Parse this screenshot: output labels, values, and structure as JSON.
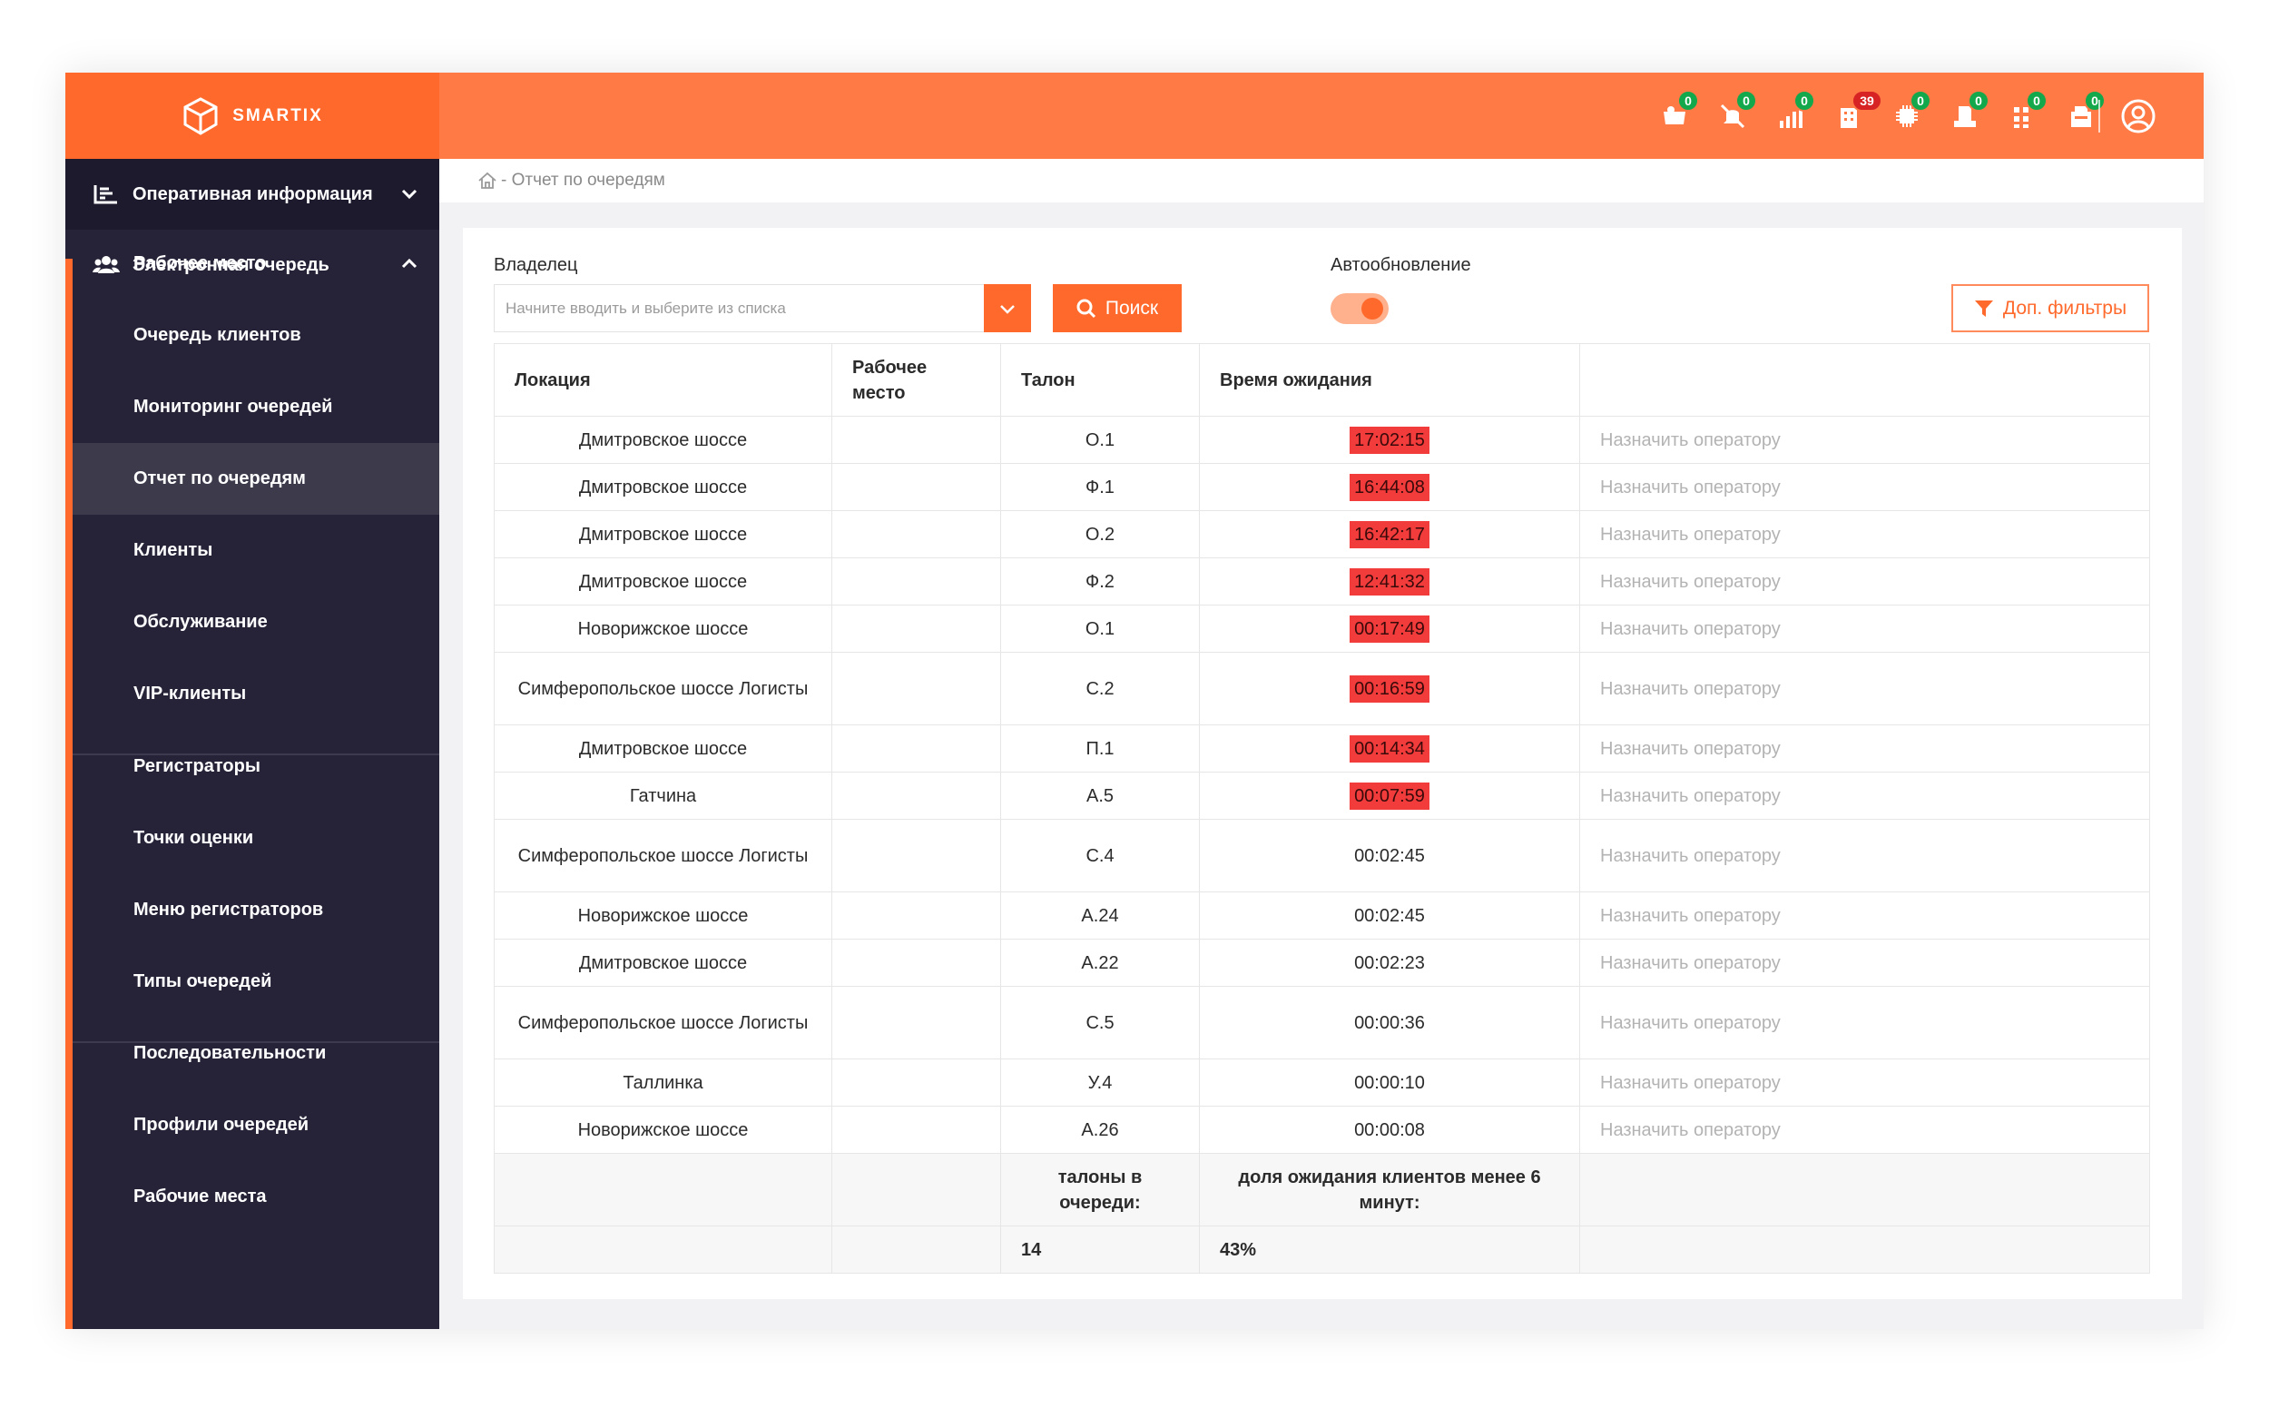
{
  "brand": {
    "name": "SMARTIX"
  },
  "header": {
    "badges": [
      {
        "icon": "cart-icon",
        "count": "0",
        "color": "#13a84b"
      },
      {
        "icon": "mute-bell-icon",
        "count": "0",
        "color": "#13a84b"
      },
      {
        "icon": "signal-icon",
        "count": "0",
        "color": "#13a84b"
      },
      {
        "icon": "building-icon",
        "count": "39",
        "color": "#d72323"
      },
      {
        "icon": "chip-icon",
        "count": "0",
        "color": "#13a84b"
      },
      {
        "icon": "printer-icon",
        "count": "0",
        "color": "#13a84b"
      },
      {
        "icon": "grid-icon",
        "count": "0",
        "color": "#13a84b"
      },
      {
        "icon": "terminal-icon",
        "count": "0",
        "color": "#13a84b"
      }
    ]
  },
  "sidebar": {
    "section1": "Оперативная информация",
    "section2": "Электронная очередь",
    "items": [
      "Рабочее место",
      "Очередь клиентов",
      "Мониторинг очередей",
      "Отчет по очередям",
      "Клиенты",
      "Обслуживание",
      "VIP-клиенты",
      "Регистраторы",
      "Точки оценки",
      "Меню регистраторов",
      "Типы очередей",
      "Последовательности",
      "Профили очередей",
      "Рабочие места"
    ],
    "active": "Отчет по очередям"
  },
  "breadcrumb": "- Отчет по очередям",
  "filters": {
    "owner_label": "Владелец",
    "owner_placeholder": "Начните вводить и выберите из списка",
    "search_label": "Поиск",
    "autoupdate_label": "Автообновление",
    "more_filters_label": "Доп. фильтры"
  },
  "table": {
    "headers": [
      "Локация",
      "Рабочее место",
      "Талон",
      "Время ожидания",
      ""
    ],
    "action_label": "Назначить оператору",
    "rows": [
      {
        "location": "Дмитровское шоссе",
        "workplace": "",
        "ticket": "О.1",
        "wait": "17:02:15",
        "overdue": true
      },
      {
        "location": "Дмитровское шоссе",
        "workplace": "",
        "ticket": "Ф.1",
        "wait": "16:44:08",
        "overdue": true
      },
      {
        "location": "Дмитровское шоссе",
        "workplace": "",
        "ticket": "О.2",
        "wait": "16:42:17",
        "overdue": true
      },
      {
        "location": "Дмитровское шоссе",
        "workplace": "",
        "ticket": "Ф.2",
        "wait": "12:41:32",
        "overdue": true
      },
      {
        "location": "Новорижское шоссе",
        "workplace": "",
        "ticket": "О.1",
        "wait": "00:17:49",
        "overdue": true
      },
      {
        "location": "Симферопольское шоссе Логисты",
        "workplace": "",
        "ticket": "С.2",
        "wait": "00:16:59",
        "overdue": true
      },
      {
        "location": "Дмитровское шоссе",
        "workplace": "",
        "ticket": "П.1",
        "wait": "00:14:34",
        "overdue": true
      },
      {
        "location": "Гатчина",
        "workplace": "",
        "ticket": "А.5",
        "wait": "00:07:59",
        "overdue": true
      },
      {
        "location": "Симферопольское шоссе Логисты",
        "workplace": "",
        "ticket": "С.4",
        "wait": "00:02:45",
        "overdue": false
      },
      {
        "location": "Новорижское шоссе",
        "workplace": "",
        "ticket": "А.24",
        "wait": "00:02:45",
        "overdue": false
      },
      {
        "location": "Дмитровское шоссе",
        "workplace": "",
        "ticket": "А.22",
        "wait": "00:02:23",
        "overdue": false
      },
      {
        "location": "Симферопольское шоссе Логисты",
        "workplace": "",
        "ticket": "С.5",
        "wait": "00:00:36",
        "overdue": false
      },
      {
        "location": "Таллинка",
        "workplace": "",
        "ticket": "У.4",
        "wait": "00:00:10",
        "overdue": false
      },
      {
        "location": "Новорижское шоссе",
        "workplace": "",
        "ticket": "А.26",
        "wait": "00:00:08",
        "overdue": false
      }
    ],
    "summary": {
      "tickets_label": "талоны в очереди:",
      "share_label": "доля ожидания клиентов менее 6 минут:",
      "tickets_value": "14",
      "share_value": "43%"
    }
  },
  "colors": {
    "accent": "#ff6a2c",
    "sidebar": "#262338",
    "overdue": "#f23c3c"
  }
}
